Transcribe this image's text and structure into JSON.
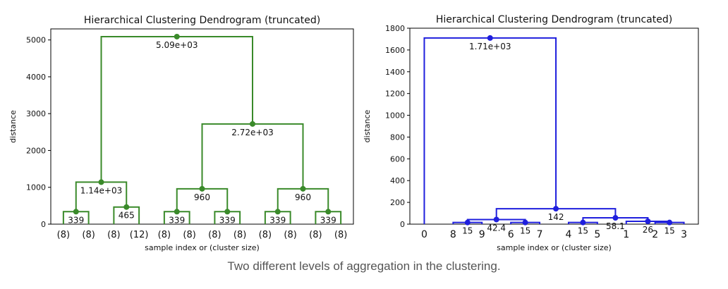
{
  "caption": "Two different levels of aggregation in the clustering.",
  "chart_data": [
    {
      "type": "dendrogram",
      "title": "Hierarchical Clustering Dendrogram (truncated)",
      "xlabel": "sample index or (cluster size)",
      "ylabel": "distance",
      "ylim": [
        0,
        5300
      ],
      "yticks": [
        0,
        1000,
        2000,
        3000,
        4000,
        5000
      ],
      "leaf_labels": [
        "(8)",
        "(8)",
        "(8)",
        "(12)",
        "(8)",
        "(8)",
        "(8)",
        "(8)",
        "(8)",
        "(8)",
        "(8)",
        "(8)"
      ],
      "color": "#3a8a2a",
      "merges": [
        {
          "left": 0,
          "right": 1,
          "height": 339,
          "label": "339"
        },
        {
          "left": 2,
          "right": 3,
          "height": 465,
          "label": "465"
        },
        {
          "left": 4,
          "right": 5,
          "height": 339,
          "label": "339"
        },
        {
          "left": 6,
          "right": 7,
          "height": 339,
          "label": "339"
        },
        {
          "left": 8,
          "right": 9,
          "height": 339,
          "label": "339"
        },
        {
          "left": 10,
          "right": 11,
          "height": 339,
          "label": "339"
        },
        {
          "left": "m0",
          "right": "m1",
          "height": 1140,
          "label": "1.14e+03"
        },
        {
          "left": "m2",
          "right": "m3",
          "height": 960,
          "label": "960"
        },
        {
          "left": "m4",
          "right": "m5",
          "height": 960,
          "label": "960"
        },
        {
          "left": "m7",
          "right": "m8",
          "height": 2720,
          "label": "2.72e+03"
        },
        {
          "left": "m6",
          "right": "m9",
          "height": 5090,
          "label": "5.09e+03"
        }
      ]
    },
    {
      "type": "dendrogram",
      "title": "Hierarchical Clustering Dendrogram (truncated)",
      "xlabel": "sample index or (cluster size)",
      "ylabel": "distance",
      "ylim": [
        0,
        1800
      ],
      "yticks": [
        0,
        200,
        400,
        600,
        800,
        1000,
        1200,
        1400,
        1600,
        1800
      ],
      "leaf_labels": [
        "0",
        "8",
        "9",
        "6",
        "7",
        "4",
        "5",
        "1",
        "2",
        "3"
      ],
      "color": "#1f1fdd",
      "merges": [
        {
          "left": 1,
          "right": 2,
          "height": 15,
          "label": "15"
        },
        {
          "left": 3,
          "right": 4,
          "height": 15,
          "label": "15"
        },
        {
          "left": "m0",
          "right": "m1",
          "height": 42.4,
          "label": "42.4"
        },
        {
          "left": 5,
          "right": 6,
          "height": 15,
          "label": "15"
        },
        {
          "left": 8,
          "right": 9,
          "height": 15,
          "label": "15"
        },
        {
          "left": 7,
          "right": "m4",
          "height": 26,
          "label": "26"
        },
        {
          "left": "m3",
          "right": "m5",
          "height": 58.1,
          "label": "58.1"
        },
        {
          "left": "m2",
          "right": "m6",
          "height": 142,
          "label": "142"
        },
        {
          "left": 0,
          "right": "m7",
          "height": 1710,
          "label": "1.71e+03"
        }
      ]
    }
  ]
}
